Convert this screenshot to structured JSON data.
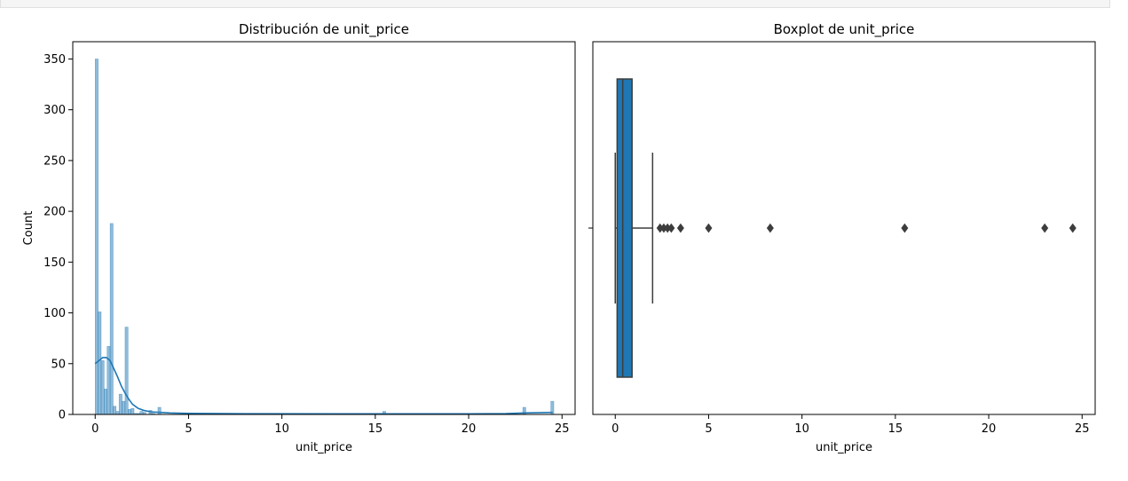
{
  "chart_data": [
    {
      "type": "histogram",
      "title": "Distribución de unit_price",
      "xlabel": "unit_price",
      "ylabel": "Count",
      "xlim": [
        -1.2,
        25.7
      ],
      "ylim": [
        0,
        367
      ],
      "xticks": [
        0,
        5,
        10,
        15,
        20,
        25
      ],
      "yticks": [
        0,
        50,
        100,
        150,
        200,
        250,
        300,
        350
      ],
      "bin_width": 0.16,
      "bins": [
        [
          0.0,
          350
        ],
        [
          0.16,
          101
        ],
        [
          0.32,
          53
        ],
        [
          0.48,
          25
        ],
        [
          0.64,
          67
        ],
        [
          0.8,
          188
        ],
        [
          0.96,
          8
        ],
        [
          1.12,
          3
        ],
        [
          1.28,
          20
        ],
        [
          1.44,
          13
        ],
        [
          1.6,
          86
        ],
        [
          1.76,
          5
        ],
        [
          1.92,
          6
        ],
        [
          2.08,
          1
        ],
        [
          2.24,
          1
        ],
        [
          2.4,
          3
        ],
        [
          2.56,
          2
        ],
        [
          2.88,
          4
        ],
        [
          3.04,
          1
        ],
        [
          3.36,
          7
        ],
        [
          5.0,
          1
        ],
        [
          8.3,
          1
        ],
        [
          15.4,
          3
        ],
        [
          22.9,
          7
        ],
        [
          24.4,
          13
        ]
      ],
      "kde": [
        [
          0.0,
          50
        ],
        [
          0.2,
          53
        ],
        [
          0.4,
          56
        ],
        [
          0.6,
          56
        ],
        [
          0.8,
          53
        ],
        [
          1.0,
          45
        ],
        [
          1.2,
          37
        ],
        [
          1.4,
          28
        ],
        [
          1.6,
          21
        ],
        [
          1.8,
          15
        ],
        [
          2.0,
          10
        ],
        [
          2.3,
          6
        ],
        [
          2.6,
          4
        ],
        [
          3.0,
          2.5
        ],
        [
          3.5,
          2
        ],
        [
          4.0,
          1.5
        ],
        [
          5.0,
          1
        ],
        [
          8.0,
          0.7
        ],
        [
          15.0,
          0.6
        ],
        [
          20.0,
          0.6
        ],
        [
          22.0,
          0.8
        ],
        [
          23.0,
          1.5
        ],
        [
          24.5,
          2
        ]
      ],
      "color": "#1f77b4"
    },
    {
      "type": "boxplot",
      "title": "Boxplot de unit_price",
      "xlabel": "unit_price",
      "ylabel": "",
      "xlim": [
        -1.2,
        25.7
      ],
      "xticks": [
        0,
        5,
        10,
        15,
        20,
        25
      ],
      "whisker_low": 0.0,
      "q1": 0.1,
      "median": 0.4,
      "q3": 0.9,
      "whisker_high": 2.0,
      "outliers": [
        2.4,
        2.6,
        2.8,
        3.0,
        3.5,
        5.0,
        8.3,
        15.5,
        23.0,
        24.5
      ],
      "box_color": "#1f77b4",
      "edge_color": "#3d3d3d"
    }
  ]
}
